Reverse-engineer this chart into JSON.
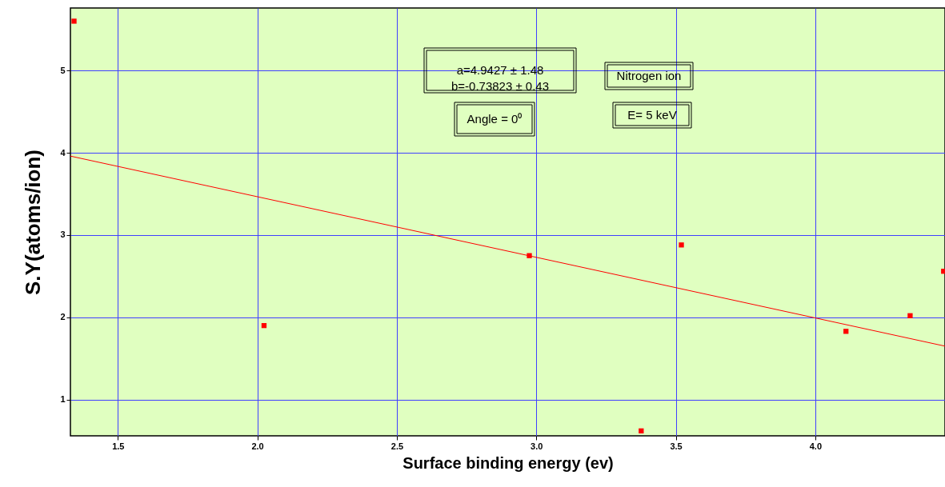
{
  "chart_data": {
    "type": "scatter",
    "xlabel": "Surface binding energy (ev)",
    "ylabel": "S.Y(atoms/ion)",
    "x": [
      1.343,
      2.024,
      2.975,
      3.376,
      3.52,
      4.11,
      4.34,
      4.46
    ],
    "series": [
      {
        "color": "#ff0000",
        "marker": "square",
        "values": [
          5.6,
          1.9,
          2.75,
          0.62,
          2.88,
          1.83,
          2.02,
          2.56
        ]
      },
      {
        "type": "line",
        "color": "#ff0000",
        "line_style": "solid",
        "x": [
          1.33,
          4.465
        ],
        "values": [
          3.96,
          1.65
        ]
      }
    ],
    "xlim": [
      1.33,
      4.465
    ],
    "ylim": [
      0.56,
      5.76
    ],
    "xticks": [
      1.5,
      {
        "value": 2,
        "label": "2.0"
      },
      2.5,
      {
        "value": 3,
        "label": "3.0"
      },
      3.5,
      {
        "value": 4,
        "label": "4.0"
      }
    ],
    "yticks": [
      1,
      2,
      3,
      4,
      5
    ],
    "annotations": [
      "a=4.9427 ± 1.48\n b=-0.73823 ± 0.43",
      "Angle = 0⁰",
      "Nitrogen ion",
      "E= 5 keV"
    ],
    "grid": true
  }
}
